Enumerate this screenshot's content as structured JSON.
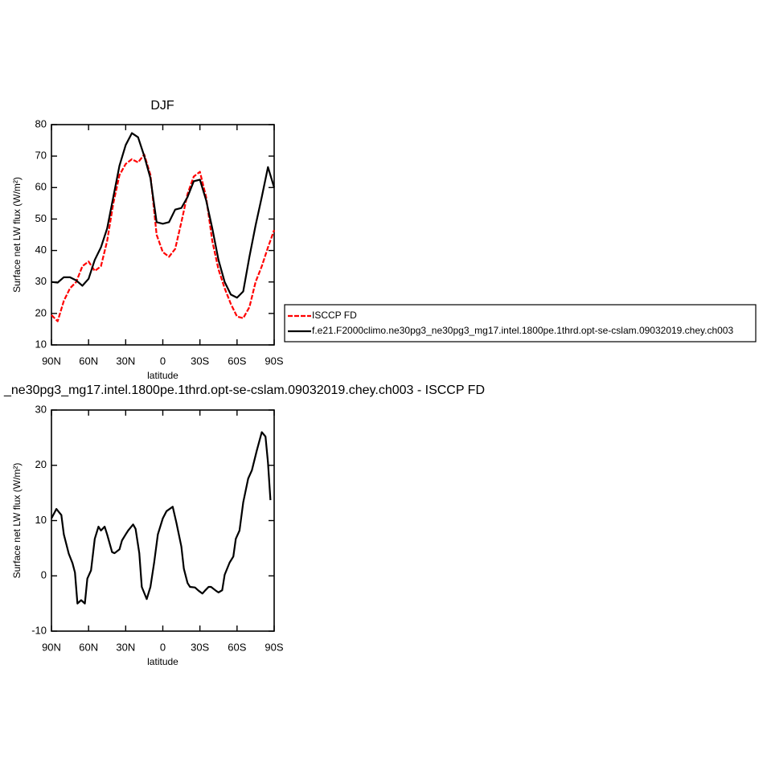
{
  "chart_data": [
    {
      "type": "line",
      "title": "DJF",
      "xlabel": "latitude",
      "ylabel": "Surface net LW flux (W/m²)",
      "xlim": [
        90,
        -90
      ],
      "ylim": [
        10,
        80
      ],
      "xticks": [
        {
          "value": 90,
          "label": "90N"
        },
        {
          "value": 60,
          "label": "60N"
        },
        {
          "value": 30,
          "label": "30N"
        },
        0,
        {
          "value": -30,
          "label": "30S"
        },
        {
          "value": -60,
          "label": "60S"
        },
        {
          "value": -90,
          "label": "90S"
        }
      ],
      "yticks": [
        10,
        20,
        30,
        40,
        50,
        60,
        70,
        80
      ],
      "legend": "right",
      "x": [
        90,
        85,
        80,
        75,
        70,
        65,
        60,
        55,
        50,
        45,
        40,
        35,
        30,
        25,
        20,
        15,
        10,
        5,
        0,
        -5,
        -10,
        -15,
        -20,
        -25,
        -30,
        -35,
        -40,
        -45,
        -50,
        -55,
        -60,
        -65,
        -70,
        -75,
        -80,
        -85,
        -90
      ],
      "series": [
        {
          "name": "ISCCP FD",
          "color": "#ff0000",
          "linestyle": "dashed",
          "values": [
            19.5,
            17.5,
            24,
            28,
            30,
            35,
            36.5,
            33.5,
            35,
            43,
            55,
            64,
            67.5,
            69,
            68,
            70.5,
            64,
            45,
            39.5,
            38,
            40.5,
            49,
            58,
            63.5,
            65,
            57,
            43,
            34,
            28,
            23,
            19,
            18.5,
            22,
            30,
            35,
            41,
            46.5
          ]
        },
        {
          "name": "f.e21.F2000climo.ne30pg3_ne30pg3_mg17.intel.1800pe.1thrd.opt-se-cslam.09032019.chey.ch003",
          "color": "#000000",
          "linestyle": "solid",
          "values": [
            30,
            29.8,
            31.5,
            31.5,
            30.5,
            28.8,
            31,
            37,
            41,
            47,
            57,
            67,
            73.5,
            77.3,
            76,
            70,
            63,
            49,
            48.5,
            49,
            53,
            53.5,
            57,
            62,
            62.5,
            56,
            47,
            37,
            30,
            26,
            25,
            27,
            38,
            48,
            57,
            66.5,
            60
          ]
        }
      ]
    },
    {
      "type": "line",
      "title": "_ne30pg3_mg17.intel.1800pe.1thrd.opt-se-cslam.09032019.chey.ch003 - ISCCP FD",
      "xlabel": "latitude",
      "ylabel": "Surface net LW flux (W/m²)",
      "xlim": [
        90,
        -90
      ],
      "ylim": [
        -10,
        30
      ],
      "xticks": [
        {
          "value": 90,
          "label": "90N"
        },
        {
          "value": 60,
          "label": "60N"
        },
        {
          "value": 30,
          "label": "30N"
        },
        0,
        {
          "value": -30,
          "label": "30S"
        },
        {
          "value": -60,
          "label": "60S"
        },
        {
          "value": -90,
          "label": "90S"
        }
      ],
      "yticks": [
        -10,
        0,
        10,
        20,
        30
      ],
      "x": [
        90,
        86,
        82,
        80,
        76,
        73,
        71,
        69,
        66,
        63,
        61,
        58,
        55,
        52,
        50,
        47,
        45,
        41,
        39,
        35,
        33,
        30,
        28,
        24,
        22,
        19,
        17,
        13,
        10,
        7,
        4,
        0,
        -3,
        -8,
        -11,
        -15,
        -17,
        -20,
        -22,
        -26,
        -29,
        -32,
        -34,
        -37,
        -39,
        -43,
        -45,
        -48,
        -50,
        -54,
        -57,
        -59,
        -62,
        -65,
        -69,
        -72,
        -76,
        -80,
        -83,
        -85,
        -87
      ],
      "series": [
        {
          "color": "#000000",
          "linestyle": "solid",
          "values": [
            10.4,
            12.1,
            11,
            7.5,
            4,
            2.3,
            0.6,
            -5,
            -4.4,
            -5,
            -0.5,
            1,
            6.7,
            8.9,
            8.2,
            8.9,
            7.5,
            4.3,
            4.1,
            4.8,
            6.4,
            7.5,
            8.2,
            9.3,
            8.5,
            4.1,
            -2,
            -4.2,
            -2,
            2.4,
            7.5,
            10.4,
            11.7,
            12.5,
            9.6,
            5.3,
            1.3,
            -1.3,
            -2,
            -2.1,
            -2.7,
            -3.2,
            -2.7,
            -2,
            -2,
            -2.7,
            -3,
            -2.6,
            0.2,
            2.4,
            3.5,
            6.7,
            8.2,
            13.3,
            17.6,
            19.1,
            22.7,
            26,
            25.2,
            20.5,
            13.7
          ]
        }
      ]
    }
  ]
}
